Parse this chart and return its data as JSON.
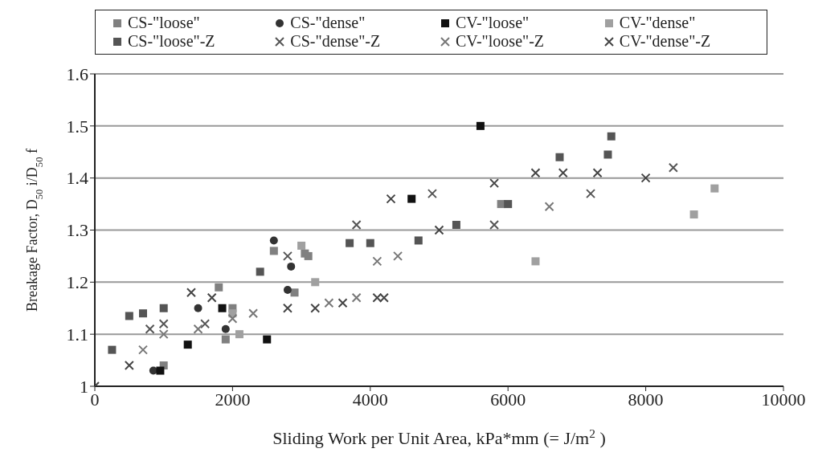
{
  "chart_data": {
    "type": "scatter",
    "xlabel": "Sliding Work per Unit Area, kPa*mm    (= J/m$^{2}$)",
    "ylabel": "Breakage Factor, D$_{50}$ i/D$_{50}$ f",
    "xlim": [
      0,
      10000
    ],
    "xticks": [
      0,
      2000,
      4000,
      6000,
      8000,
      10000
    ],
    "ylim": [
      1,
      1.6
    ],
    "yticks": [
      1,
      1.1,
      1.2,
      1.3,
      1.4,
      1.5,
      1.6
    ],
    "grid": "y",
    "legend": "top",
    "series": [
      {
        "name": "CS-\"loose\"",
        "color": "#808080",
        "marker": "square",
        "x": [
          1900,
          2000,
          2600,
          3050,
          3100,
          1000,
          2900,
          5900,
          1800
        ],
        "values": [
          1.09,
          1.15,
          1.26,
          1.255,
          1.25,
          1.04,
          1.18,
          1.35,
          1.19
        ]
      },
      {
        "name": "CS-\"dense\"",
        "color": "#333333",
        "marker": "circle",
        "x": [
          2600,
          2850,
          2800,
          1900,
          1500,
          850
        ],
        "values": [
          1.28,
          1.23,
          1.185,
          1.11,
          1.15,
          1.03
        ]
      },
      {
        "name": "CV-\"loose\"",
        "color": "#111111",
        "marker": "square",
        "x": [
          5600,
          4600,
          1850,
          1350,
          2500,
          950
        ],
        "values": [
          1.5,
          1.36,
          1.15,
          1.08,
          1.09,
          1.03
        ]
      },
      {
        "name": "CV-\"dense\"",
        "color": "#a0a0a0",
        "marker": "square",
        "x": [
          9000,
          8700,
          6400,
          3200,
          2100,
          2000,
          3000
        ],
        "values": [
          1.38,
          1.33,
          1.24,
          1.2,
          1.1,
          1.14,
          1.27
        ]
      },
      {
        "name": "CS-\"loose\"-Z",
        "color": "#555555",
        "marker": "square",
        "x": [
          500,
          700,
          1000,
          7500,
          7450,
          6750,
          5250,
          4700,
          2400,
          250,
          3700,
          4000,
          6000
        ],
        "values": [
          1.135,
          1.14,
          1.15,
          1.48,
          1.445,
          1.44,
          1.31,
          1.28,
          1.22,
          1.07,
          1.275,
          1.275,
          1.35
        ]
      },
      {
        "name": "CS-\"dense\"-Z",
        "color": "#555555",
        "marker": "cross",
        "x": [
          8400,
          7200,
          1000,
          1600,
          800,
          2800,
          3800,
          4900,
          5800
        ],
        "values": [
          1.42,
          1.37,
          1.12,
          1.12,
          1.11,
          1.25,
          1.31,
          1.37,
          1.31
        ]
      },
      {
        "name": "CV-\"loose\"-Z",
        "color": "#777777",
        "marker": "cross",
        "x": [
          6600,
          4100,
          4400,
          2000,
          1500,
          700,
          3400,
          2300,
          3800,
          1000
        ],
        "values": [
          1.345,
          1.24,
          1.25,
          1.13,
          1.11,
          1.07,
          1.16,
          1.14,
          1.17,
          1.1
        ]
      },
      {
        "name": "CV-\"dense\"-Z",
        "color": "#444444",
        "marker": "cross",
        "x": [
          6400,
          6800,
          7300,
          8000,
          5800,
          4300,
          5000,
          3200,
          2800,
          4100,
          4200,
          500,
          1400,
          1700,
          3600,
          0
        ],
        "values": [
          1.41,
          1.41,
          1.41,
          1.4,
          1.39,
          1.36,
          1.3,
          1.15,
          1.15,
          1.17,
          1.17,
          1.04,
          1.18,
          1.17,
          1.16,
          1
        ]
      }
    ]
  }
}
